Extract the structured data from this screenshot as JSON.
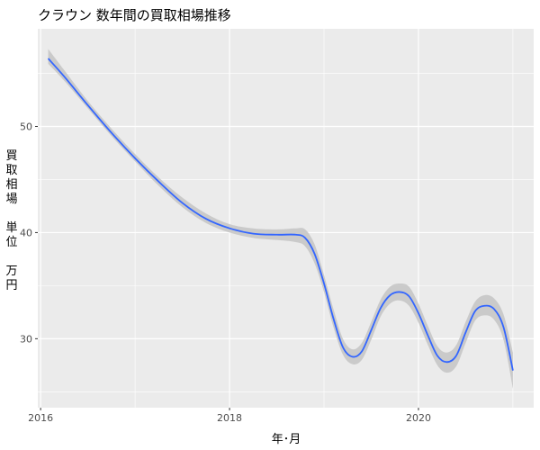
{
  "chart_data": {
    "type": "line",
    "title": "クラウン 数年間の買取相場推移",
    "xlabel": "年･月",
    "ylabel_chars": [
      "買",
      "取",
      "相",
      "場",
      "",
      "単",
      "位",
      "",
      "万",
      "円"
    ],
    "xlim": [
      2015.97,
      2021.22
    ],
    "ylim": [
      23.5,
      59.2
    ],
    "x_ticks": [
      {
        "value": 2016,
        "label": "2016"
      },
      {
        "value": 2018,
        "label": "2018"
      },
      {
        "value": 2020,
        "label": "2020"
      }
    ],
    "y_ticks": [
      {
        "value": 30,
        "label": "30"
      },
      {
        "value": 40,
        "label": "40"
      },
      {
        "value": 50,
        "label": "50"
      }
    ],
    "grid": true,
    "legend": "none",
    "colors": {
      "panel": "#ebebeb",
      "grid": "#ffffff",
      "line": "#3366ff",
      "ribbon": "#c8c8c8"
    },
    "series": [
      {
        "x": [
          2016.08,
          2016.25,
          2016.5,
          2016.75,
          2017.0,
          2017.25,
          2017.5,
          2017.75,
          2018.0,
          2018.25,
          2018.5,
          2018.7,
          2018.8,
          2018.9,
          2019.0,
          2019.1,
          2019.2,
          2019.3,
          2019.4,
          2019.5,
          2019.6,
          2019.7,
          2019.8,
          2019.9,
          2020.0,
          2020.1,
          2020.2,
          2020.3,
          2020.4,
          2020.5,
          2020.6,
          2020.7,
          2020.8,
          2020.9,
          2021.0
        ],
        "y": [
          56.4,
          54.7,
          52.0,
          49.4,
          47.0,
          44.8,
          42.8,
          41.3,
          40.4,
          39.9,
          39.8,
          39.8,
          39.5,
          38.0,
          35.2,
          31.9,
          29.2,
          28.3,
          28.8,
          30.8,
          32.9,
          34.1,
          34.4,
          34.0,
          32.4,
          30.3,
          28.4,
          27.8,
          28.4,
          30.6,
          32.6,
          33.1,
          32.8,
          31.1,
          27.0
        ],
        "lower": [
          55.9,
          54.3,
          51.7,
          49.1,
          46.7,
          44.4,
          42.4,
          40.9,
          40.0,
          39.5,
          39.3,
          39.1,
          38.7,
          37.1,
          34.4,
          31.1,
          28.5,
          27.6,
          28.0,
          29.9,
          32.1,
          33.3,
          33.6,
          33.1,
          31.5,
          29.4,
          27.5,
          26.8,
          27.4,
          29.6,
          31.7,
          32.2,
          31.8,
          29.9,
          25.3
        ],
        "upper": [
          57.3,
          55.3,
          52.4,
          49.8,
          47.4,
          45.2,
          43.3,
          41.8,
          40.8,
          40.4,
          40.3,
          40.4,
          40.3,
          38.9,
          36.0,
          32.8,
          30.0,
          29.0,
          29.6,
          31.6,
          33.7,
          34.9,
          35.2,
          34.9,
          33.3,
          31.2,
          29.3,
          28.7,
          29.4,
          31.6,
          33.5,
          34.1,
          33.8,
          32.3,
          28.7
        ]
      }
    ]
  }
}
